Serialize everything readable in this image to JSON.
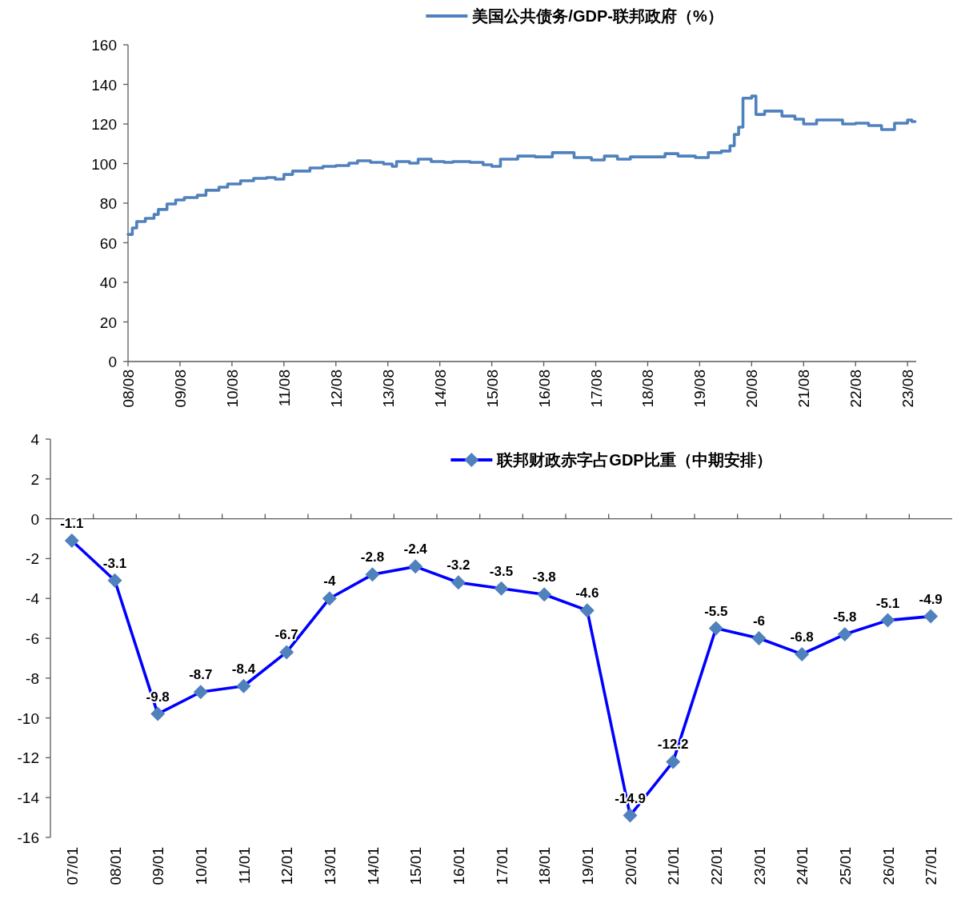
{
  "chart_data": [
    {
      "type": "step",
      "x": [
        "2008-08",
        "2008-09",
        "2008-10",
        "2008-12",
        "2009-02",
        "2009-03",
        "2009-05",
        "2009-07",
        "2009-09",
        "2009-12",
        "2010-02",
        "2010-05",
        "2010-07",
        "2010-10",
        "2011-01",
        "2011-04",
        "2011-06",
        "2011-08",
        "2011-10",
        "2012-02",
        "2012-05",
        "2012-08",
        "2012-11",
        "2013-01",
        "2013-04",
        "2013-07",
        "2013-09",
        "2013-10",
        "2014-01",
        "2014-03",
        "2014-06",
        "2014-09",
        "2014-11",
        "2015-03",
        "2015-06",
        "2015-08",
        "2015-10",
        "2016-02",
        "2016-06",
        "2016-10",
        "2017-03",
        "2017-07",
        "2017-10",
        "2018-01",
        "2018-04",
        "2018-08",
        "2018-12",
        "2019-03",
        "2019-07",
        "2019-10",
        "2020-01",
        "2020-03",
        "2020-04",
        "2020-05",
        "2020-06",
        "2020-08",
        "2020-09",
        "2020-11",
        "2021-03",
        "2021-06",
        "2021-08",
        "2021-11",
        "2022-02",
        "2022-05",
        "2022-08",
        "2022-11",
        "2023-02",
        "2023-05",
        "2023-08",
        "2023-09"
      ],
      "series": [
        {
          "name": "美国公共债务/GDP-联邦政府（%）",
          "color": "#4f81bd",
          "values": [
            64.2,
            67.5,
            70.7,
            72.3,
            74.3,
            76.8,
            79.6,
            81.6,
            82.8,
            84,
            86.5,
            88.1,
            89.7,
            91.3,
            92.5,
            92.9,
            92.1,
            94.5,
            96.2,
            97.8,
            98.6,
            99,
            100.2,
            101.4,
            100.6,
            99.8,
            98.6,
            101,
            100.2,
            102.2,
            101,
            100.6,
            101,
            100.6,
            99.4,
            98.6,
            102.2,
            103.8,
            103.4,
            105.5,
            103,
            101.8,
            103.8,
            102.2,
            103.4,
            103.4,
            105,
            103.8,
            103,
            105.5,
            106.3,
            109,
            114.7,
            118.4,
            133,
            134.1,
            124.8,
            126.5,
            124,
            122.4,
            120,
            122,
            122,
            120,
            120.4,
            119.2,
            117.2,
            120.4,
            122,
            121.2
          ]
        }
      ],
      "xlim": [
        "2008-08",
        "2023-10"
      ],
      "xticks": [
        {
          "value": "2008-08",
          "label": "08/08"
        },
        {
          "value": "2009-08",
          "label": "09/08"
        },
        {
          "value": "2010-08",
          "label": "10/08"
        },
        {
          "value": "2011-08",
          "label": "11/08"
        },
        {
          "value": "2012-08",
          "label": "12/08"
        },
        {
          "value": "2013-08",
          "label": "13/08"
        },
        {
          "value": "2014-08",
          "label": "14/08"
        },
        {
          "value": "2015-08",
          "label": "15/08"
        },
        {
          "value": "2016-08",
          "label": "16/08"
        },
        {
          "value": "2017-08",
          "label": "17/08"
        },
        {
          "value": "2018-08",
          "label": "18/08"
        },
        {
          "value": "2019-08",
          "label": "19/08"
        },
        {
          "value": "2020-08",
          "label": "20/08"
        },
        {
          "value": "2021-08",
          "label": "21/08"
        },
        {
          "value": "2022-08",
          "label": "22/08"
        },
        {
          "value": "2023-08",
          "label": "23/08"
        }
      ],
      "ylim": [
        0,
        160
      ],
      "yticks": [
        0,
        20,
        40,
        60,
        80,
        100,
        120,
        140,
        160
      ],
      "grid": false,
      "legend": "top",
      "marker": "none",
      "line_style": "solid"
    },
    {
      "type": "line",
      "categories": [
        "07/01",
        "08/01",
        "09/01",
        "10/01",
        "11/01",
        "12/01",
        "13/01",
        "14/01",
        "15/01",
        "16/01",
        "17/01",
        "18/01",
        "19/01",
        "20/01",
        "21/01",
        "22/01",
        "23/01",
        "24/01",
        "25/01",
        "26/01",
        "27/01"
      ],
      "series": [
        {
          "name": "联邦财政赤字占GDP比重（中期安排）",
          "color": "#0000ff",
          "values": [
            -1.1,
            -3.1,
            -9.8,
            -8.7,
            -8.4,
            -6.7,
            -4,
            -2.8,
            -2.4,
            -3.2,
            -3.5,
            -3.8,
            -4.6,
            -14.9,
            -12.2,
            -5.5,
            -6,
            -6.8,
            -5.8,
            -5.1,
            -4.9
          ]
        }
      ],
      "ylim": [
        -16,
        4
      ],
      "yticks": [
        -16,
        -14,
        -12,
        -10,
        -8,
        -6,
        -4,
        -2,
        0,
        2,
        4
      ],
      "data_labels": true,
      "legend": "top",
      "marker": "diamond",
      "line_style": "solid"
    }
  ]
}
